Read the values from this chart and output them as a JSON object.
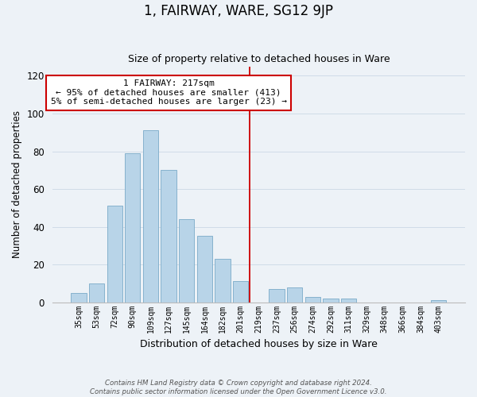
{
  "title": "1, FAIRWAY, WARE, SG12 9JP",
  "subtitle": "Size of property relative to detached houses in Ware",
  "xlabel": "Distribution of detached houses by size in Ware",
  "ylabel": "Number of detached properties",
  "bar_labels": [
    "35sqm",
    "53sqm",
    "72sqm",
    "90sqm",
    "109sqm",
    "127sqm",
    "145sqm",
    "164sqm",
    "182sqm",
    "201sqm",
    "219sqm",
    "237sqm",
    "256sqm",
    "274sqm",
    "292sqm",
    "311sqm",
    "329sqm",
    "348sqm",
    "366sqm",
    "384sqm",
    "403sqm"
  ],
  "bar_values": [
    5,
    10,
    51,
    79,
    91,
    70,
    44,
    35,
    23,
    11,
    0,
    7,
    8,
    3,
    2,
    2,
    0,
    0,
    0,
    0,
    1
  ],
  "bar_color": "#b8d4e8",
  "bar_edge_color": "#7aaac8",
  "highlight_line_index": 10,
  "highlight_label": "1 FAIRWAY: 217sqm",
  "annotation_line1": "← 95% of detached houses are smaller (413)",
  "annotation_line2": "5% of semi-detached houses are larger (23) →",
  "annotation_box_facecolor": "#ffffff",
  "annotation_box_edgecolor": "#cc0000",
  "ylim": [
    0,
    125
  ],
  "yticks": [
    0,
    20,
    40,
    60,
    80,
    100,
    120
  ],
  "grid_color": "#d0dce8",
  "background_color": "#edf2f7",
  "footer_line1": "Contains HM Land Registry data © Crown copyright and database right 2024.",
  "footer_line2": "Contains public sector information licensed under the Open Government Licence v3.0."
}
